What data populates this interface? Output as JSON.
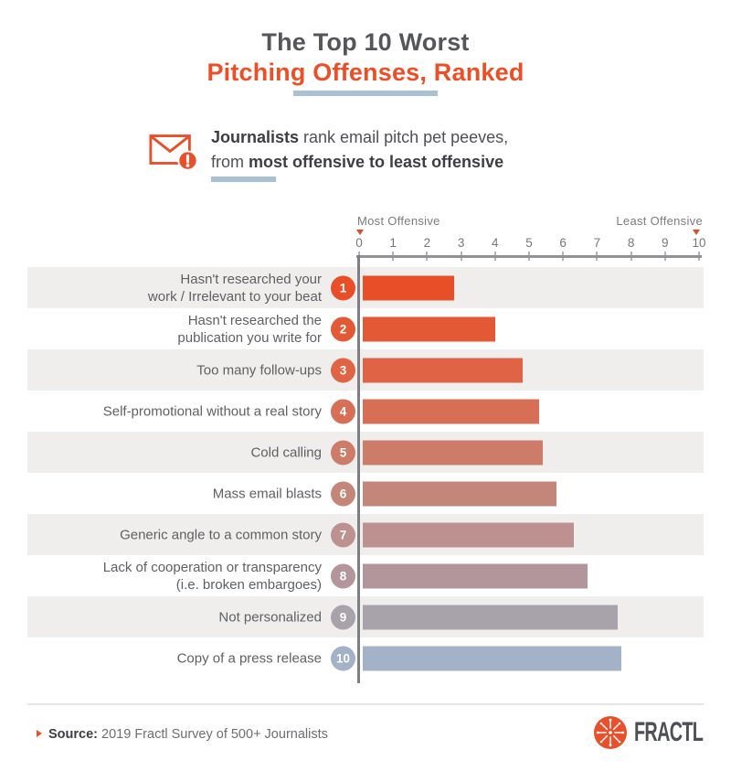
{
  "title": {
    "line1": "The Top 10 Worst",
    "line2": "Pitching Offenses, Ranked"
  },
  "subtitle": {
    "bold1": "Journalists",
    "rest1": " rank email pitch pet peeves,",
    "rest2": "from ",
    "bold2": "most offensive to least offensive"
  },
  "axis": {
    "left_label": "Most Offensive",
    "right_label": "Least Offensive",
    "ticks": [
      "0",
      "1",
      "2",
      "3",
      "4",
      "5",
      "6",
      "7",
      "8",
      "9",
      "10"
    ]
  },
  "rows": [
    {
      "rank": "1",
      "label": "Hasn't researched your\nwork / Irrelevant to your beat",
      "value": 2.7,
      "color": "#e84f29"
    },
    {
      "rank": "2",
      "label": "Hasn't researched the\npublication you write for",
      "value": 3.9,
      "color": "#e45935"
    },
    {
      "rank": "3",
      "label": "Too many follow-ups",
      "value": 4.7,
      "color": "#df6344"
    },
    {
      "rank": "4",
      "label": "Self-promotional without a real story",
      "value": 5.2,
      "color": "#d66f56"
    },
    {
      "rank": "5",
      "label": "Cold calling",
      "value": 5.3,
      "color": "#cd7c6a"
    },
    {
      "rank": "6",
      "label": "Mass email blasts",
      "value": 5.7,
      "color": "#c5867a"
    },
    {
      "rank": "7",
      "label": "Generic angle to a common story",
      "value": 6.2,
      "color": "#bd9190"
    },
    {
      "rank": "8",
      "label": "Lack of cooperation or transparency\n(i.e. broken embargoes)",
      "value": 6.6,
      "color": "#b2969c"
    },
    {
      "rank": "9",
      "label": "Not personalized",
      "value": 7.5,
      "color": "#a8a2ab"
    },
    {
      "rank": "10",
      "label": "Copy of a press release",
      "value": 7.6,
      "color": "#a3b2c6"
    }
  ],
  "chart_data": {
    "type": "bar",
    "orientation": "horizontal",
    "title": "The Top 10 Worst Pitching Offenses, Ranked",
    "subtitle": "Journalists rank email pitch pet peeves, from most offensive to least offensive",
    "categories": [
      "Hasn't researched your work / Irrelevant to your beat",
      "Hasn't researched the publication you write for",
      "Too many follow-ups",
      "Self-promotional without a real story",
      "Cold calling",
      "Mass email blasts",
      "Generic angle to a common story",
      "Lack of cooperation or transparency (i.e. broken embargoes)",
      "Not personalized",
      "Copy of a press release"
    ],
    "values": [
      2.7,
      3.9,
      4.7,
      5.2,
      5.3,
      5.7,
      6.2,
      6.6,
      7.5,
      7.6
    ],
    "xlabel": "0 = Most Offensive, 10 = Least Offensive",
    "ylabel": "",
    "xlim": [
      0,
      10
    ],
    "xticks": [
      0,
      1,
      2,
      3,
      4,
      5,
      6,
      7,
      8,
      9,
      10
    ],
    "grid": false,
    "legend": false,
    "bar_colors": [
      "#e84f29",
      "#e45935",
      "#df6344",
      "#d66f56",
      "#cd7c6a",
      "#c5867a",
      "#bd9190",
      "#b2969c",
      "#a8a2ab",
      "#a3b2c6"
    ]
  },
  "footer": {
    "source_label": "Source:",
    "source_text": " 2019 Fractl Survey of 500+ Journalists",
    "brand": "FRACTL"
  },
  "colors": {
    "accent_orange": "#e8502b",
    "title_gray": "#55565a",
    "title_orange": "#ee4e26",
    "underline_blue": "#a9c1d4",
    "row_band": "#efeeec",
    "axis_gray": "#919296"
  }
}
